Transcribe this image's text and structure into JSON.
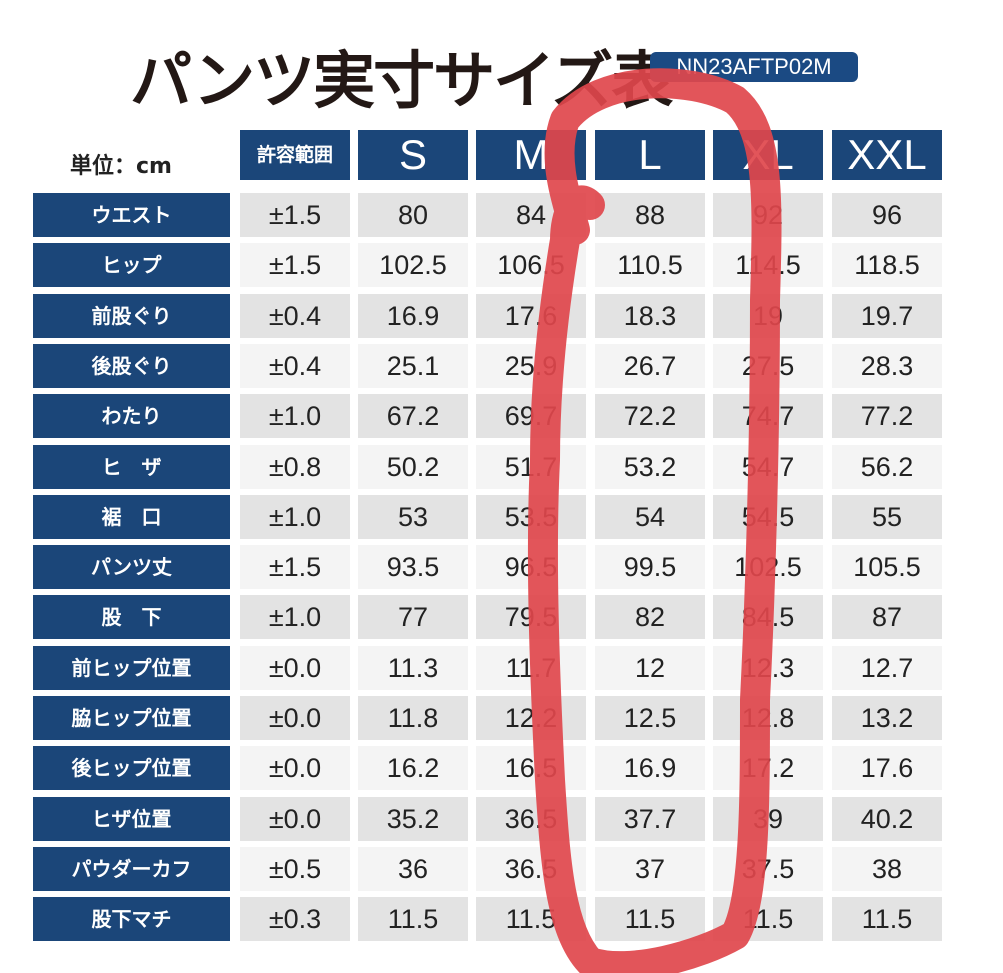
{
  "title": "パンツ実寸サイズ表",
  "product_code": "NN23AFTP02M",
  "unit_label": "単位：cm",
  "headers": [
    "許容範囲",
    "S",
    "M",
    "L",
    "XL",
    "XXL"
  ],
  "rows": [
    {
      "label": "ウエスト",
      "tolerance": "±1.5",
      "values": [
        "80",
        "84",
        "88",
        "92",
        "96"
      ]
    },
    {
      "label": "ヒップ",
      "tolerance": "±1.5",
      "values": [
        "102.5",
        "106.5",
        "110.5",
        "114.5",
        "118.5"
      ]
    },
    {
      "label": "前股ぐり",
      "tolerance": "±0.4",
      "values": [
        "16.9",
        "17.6",
        "18.3",
        "19",
        "19.7"
      ]
    },
    {
      "label": "後股ぐり",
      "tolerance": "±0.4",
      "values": [
        "25.1",
        "25.9",
        "26.7",
        "27.5",
        "28.3"
      ]
    },
    {
      "label": "わたり",
      "tolerance": "±1.0",
      "values": [
        "67.2",
        "69.7",
        "72.2",
        "74.7",
        "77.2"
      ]
    },
    {
      "label": "ヒ　ザ",
      "tolerance": "±0.8",
      "values": [
        "50.2",
        "51.7",
        "53.2",
        "54.7",
        "56.2"
      ]
    },
    {
      "label": "裾　口",
      "tolerance": "±1.0",
      "values": [
        "53",
        "53.5",
        "54",
        "54.5",
        "55"
      ]
    },
    {
      "label": "パンツ丈",
      "tolerance": "±1.5",
      "values": [
        "93.5",
        "96.5",
        "99.5",
        "102.5",
        "105.5"
      ]
    },
    {
      "label": "股　下",
      "tolerance": "±1.0",
      "values": [
        "77",
        "79.5",
        "82",
        "84.5",
        "87"
      ]
    },
    {
      "label": "前ヒップ位置",
      "tolerance": "±0.0",
      "values": [
        "11.3",
        "11.7",
        "12",
        "12.3",
        "12.7"
      ]
    },
    {
      "label": "脇ヒップ位置",
      "tolerance": "±0.0",
      "values": [
        "11.8",
        "12.2",
        "12.5",
        "12.8",
        "13.2"
      ]
    },
    {
      "label": "後ヒップ位置",
      "tolerance": "±0.0",
      "values": [
        "16.2",
        "16.5",
        "16.9",
        "17.2",
        "17.6"
      ]
    },
    {
      "label": "ヒザ位置",
      "tolerance": "±0.0",
      "values": [
        "35.2",
        "36.5",
        "37.7",
        "39",
        "40.2"
      ]
    },
    {
      "label": "パウダーカフ",
      "tolerance": "±0.5",
      "values": [
        "36",
        "36.5",
        "37",
        "37.5",
        "38"
      ]
    },
    {
      "label": "股下マチ",
      "tolerance": "±0.3",
      "values": [
        "11.5",
        "11.5",
        "11.5",
        "11.5",
        "11.5"
      ]
    }
  ],
  "colors": {
    "header": "#1b4679",
    "annotation": "#e0474c"
  }
}
